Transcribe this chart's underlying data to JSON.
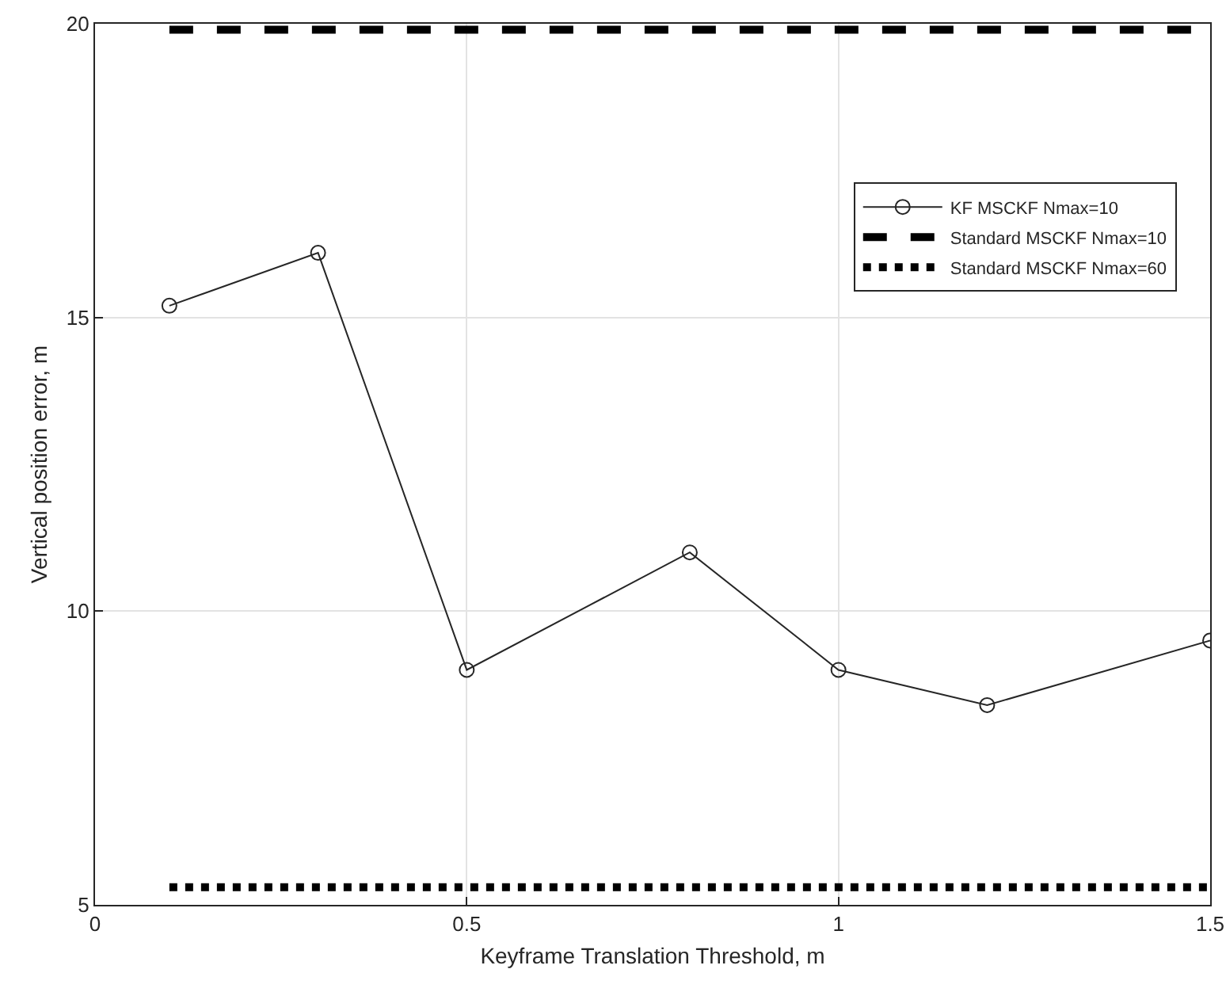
{
  "chart_data": {
    "type": "line",
    "xlabel": "Keyframe Translation Threshold, m",
    "ylabel": "Vertical position error, m",
    "x": [
      0.1,
      0.3,
      0.5,
      0.8,
      1.0,
      1.2,
      1.5
    ],
    "series": [
      {
        "name": "KF MSCKF Nmax=10",
        "color": "#262626",
        "values": [
          15.2,
          16.1,
          9.0,
          11.0,
          9.0,
          8.4,
          9.5
        ],
        "marker": "circle",
        "line_style": "solid"
      },
      {
        "name": "Standard MSCKF Nmax=10",
        "color": "#000000",
        "values": [
          19.9,
          19.9,
          19.9,
          19.9,
          19.9,
          19.9,
          19.9
        ],
        "marker": "none",
        "line_style": "dashed"
      },
      {
        "name": "Standard MSCKF Nmax=60",
        "color": "#000000",
        "values": [
          5.3,
          5.3,
          5.3,
          5.3,
          5.3,
          5.3,
          5.3
        ],
        "marker": "none",
        "line_style": "dotted"
      }
    ],
    "xlim": [
      0,
      1.5
    ],
    "xticks": [
      0,
      0.5,
      1,
      1.5
    ],
    "ylim": [
      5,
      20
    ],
    "yticks": [
      5,
      10,
      15,
      20
    ],
    "grid": true,
    "legend": "top right"
  }
}
